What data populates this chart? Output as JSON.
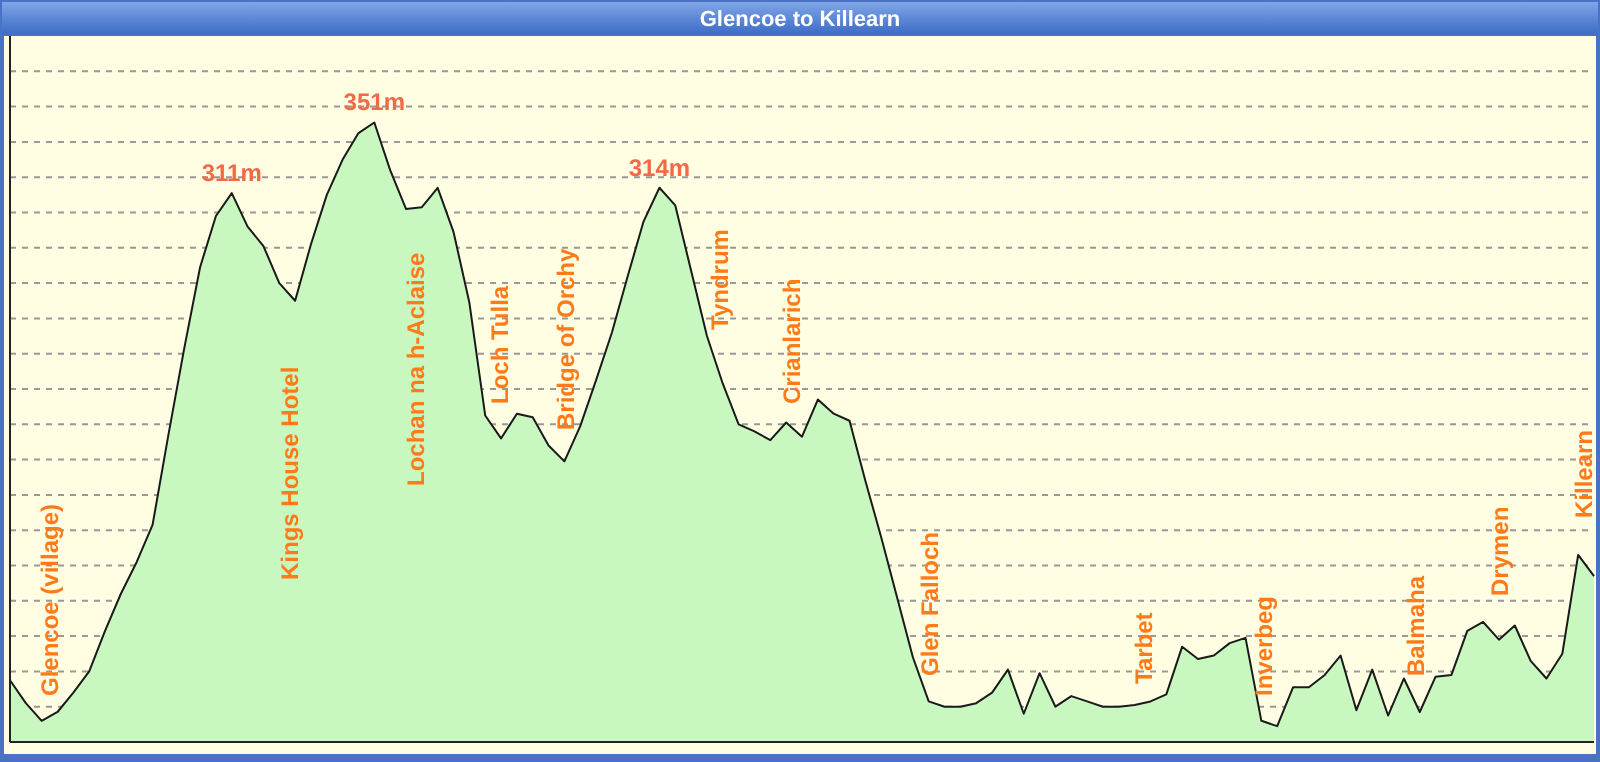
{
  "chart_data": {
    "type": "area",
    "title": "Glencoe to Killearn",
    "grid": "y",
    "ylim": [
      0,
      400
    ],
    "yticks": [
      {
        "value": 20,
        "label": null
      },
      {
        "value": 40,
        "label": null
      },
      {
        "value": 60,
        "label": null
      },
      {
        "value": 80,
        "label": null
      },
      {
        "value": 100,
        "label": null
      },
      {
        "value": 120,
        "label": null
      },
      {
        "value": 140,
        "label": null
      },
      {
        "value": 160,
        "label": null
      },
      {
        "value": 180,
        "label": null
      },
      {
        "value": 200,
        "label": null
      },
      {
        "value": 220,
        "label": null
      },
      {
        "value": 240,
        "label": null
      },
      {
        "value": 260,
        "label": null
      },
      {
        "value": 280,
        "label": null
      },
      {
        "value": 300,
        "label": null
      },
      {
        "value": 320,
        "label": null
      },
      {
        "value": 340,
        "label": null
      },
      {
        "value": 360,
        "label": null
      },
      {
        "value": 380,
        "label": null
      }
    ],
    "categories": [
      null,
      null,
      null,
      null,
      null,
      null,
      null,
      null,
      null,
      null,
      null,
      null,
      null,
      null,
      null,
      null,
      null,
      null,
      null,
      null,
      null,
      null,
      null,
      null,
      null,
      null,
      null,
      null,
      null,
      null,
      null,
      null,
      null,
      null,
      null,
      null,
      null,
      null,
      null,
      null,
      null,
      null,
      null,
      null,
      null,
      null,
      null,
      null,
      null,
      null,
      null,
      null,
      null,
      null,
      null,
      null,
      null,
      null,
      null,
      null,
      null,
      null,
      null,
      null,
      null,
      null,
      null,
      null,
      null,
      null,
      null,
      null,
      null,
      null,
      null,
      null,
      null,
      null,
      null,
      null,
      null,
      null,
      null,
      null,
      null,
      null,
      null,
      null,
      null,
      null,
      null,
      null,
      null,
      null,
      null,
      null,
      null,
      null,
      null,
      null,
      null
    ],
    "series": [
      {
        "color": "#c8f8c0",
        "values": [
          35,
          22,
          12,
          17,
          28,
          40,
          63,
          84,
          102,
          123,
          174,
          223,
          269,
          298,
          311,
          292,
          281,
          260,
          250,
          282,
          310,
          330,
          345,
          351,
          324,
          302,
          303,
          314,
          289,
          249,
          185,
          172,
          186,
          184,
          168,
          159,
          179,
          205,
          232,
          264,
          295,
          314,
          304,
          267,
          230,
          203,
          180,
          176,
          171,
          181,
          173,
          194,
          186,
          182,
          148,
          116,
          82,
          48,
          23,
          20,
          20,
          22,
          28,
          41,
          16,
          39,
          20,
          26,
          23,
          20,
          20,
          21,
          23,
          27,
          54,
          47,
          49,
          56,
          59,
          12,
          9,
          31,
          31,
          38,
          49,
          18,
          41,
          15,
          36,
          17,
          37,
          38,
          63,
          68,
          58,
          66,
          46,
          36,
          50,
          106,
          94
        ],
        "value_labels": [
          null,
          null,
          null,
          null,
          null,
          null,
          null,
          null,
          null,
          null,
          null,
          null,
          null,
          null,
          "311m",
          null,
          null,
          null,
          null,
          null,
          null,
          null,
          null,
          "351m",
          null,
          null,
          null,
          null,
          null,
          null,
          null,
          null,
          null,
          null,
          null,
          null,
          null,
          null,
          null,
          null,
          null,
          "314m",
          null,
          null,
          null,
          null,
          null,
          null,
          null,
          null,
          null,
          null,
          null,
          null,
          null,
          null,
          null,
          null,
          null,
          null,
          null,
          null,
          null,
          null,
          null,
          null,
          null,
          null,
          null,
          null,
          null,
          null,
          null,
          null,
          null,
          null,
          null,
          null,
          null,
          null,
          null,
          null,
          null,
          null,
          null,
          null,
          null,
          null,
          null,
          null,
          null,
          null,
          null,
          null,
          null,
          null,
          null,
          null,
          null,
          null,
          null
        ]
      }
    ],
    "annotations": [
      "Glencoe (village)",
      "Kings House Hotel",
      "Lochan na h-Aclaise",
      "Loch Tulla",
      "Bridge of Orchy",
      "Tyndrum",
      "Crianlarich",
      "Glen Falloch",
      "Tarbet",
      "Inverbeg",
      "Balmaha",
      "Drymen",
      "Killearn"
    ]
  }
}
